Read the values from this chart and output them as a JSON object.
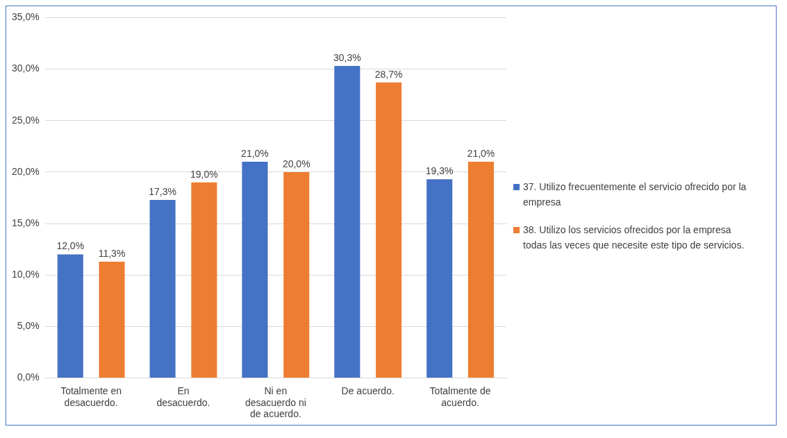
{
  "chart_data": {
    "type": "bar",
    "categories": [
      "Totalmente en desacuerdo.",
      "En desacuerdo.",
      "Ni en desacuerdo ni de acuerdo.",
      "De acuerdo.",
      "Totalmente de acuerdo."
    ],
    "series": [
      {
        "name": "37. Utilizo frecuentemente el servicio ofrecido por la empresa",
        "color": "#4472c4",
        "values": [
          12.0,
          17.3,
          21.0,
          30.3,
          19.3
        ],
        "value_labels": [
          "12,0%",
          "17,3%",
          "21,0%",
          "30,3%",
          "19,3%"
        ]
      },
      {
        "name": "38. Utilizo los servicios ofrecidos por la empresa todas las veces que necesite este tipo de servicios.",
        "color": "#ed7d31",
        "values": [
          11.3,
          19.0,
          20.0,
          28.7,
          21.0
        ],
        "value_labels": [
          "11,3%",
          "19,0%",
          "20,0%",
          "28,7%",
          "21,0%"
        ]
      }
    ],
    "ylim": [
      0,
      35
    ],
    "yticks": [
      {
        "value": 0,
        "label": "0,0%"
      },
      {
        "value": 5,
        "label": "5,0%"
      },
      {
        "value": 10,
        "label": "10,0%"
      },
      {
        "value": 15,
        "label": "15,0%"
      },
      {
        "value": 20,
        "label": "20,0%"
      },
      {
        "value": 25,
        "label": "25,0%"
      },
      {
        "value": 30,
        "label": "30,0%"
      },
      {
        "value": 35,
        "label": "35,0%"
      }
    ],
    "grid": "y",
    "legend": "right"
  }
}
